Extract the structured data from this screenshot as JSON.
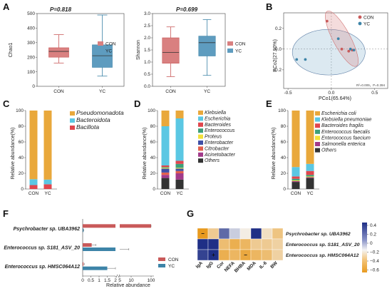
{
  "colors": {
    "con": "#c95a5a",
    "yc": "#3d84a8",
    "con_fill": "#d98080",
    "yc_fill": "#5e9cbf"
  },
  "chart_data": [
    {
      "panel": "A",
      "type": "box",
      "ylabel": "Chao1",
      "pvalue_text": "P=0.818",
      "ylim": [
        0,
        500
      ],
      "yticks": [
        0,
        100,
        200,
        300,
        400,
        500
      ],
      "categories": [
        "CON",
        "YC"
      ],
      "series": [
        {
          "name": "CON",
          "min": 160,
          "q1": 200,
          "median": 240,
          "q3": 265,
          "max": 355
        },
        {
          "name": "YC",
          "min": 70,
          "q1": 130,
          "median": 210,
          "q3": 285,
          "max": 490
        }
      ]
    },
    {
      "panel": "A2",
      "type": "box",
      "ylabel": "Shannon",
      "pvalue_text": "P=0.699",
      "ylim": [
        0,
        3.0
      ],
      "yticks": [
        0.0,
        0.5,
        1.0,
        1.5,
        2.0,
        2.5,
        3.0
      ],
      "categories": [
        "CON",
        "YC"
      ],
      "series": [
        {
          "name": "CON",
          "min": 0.4,
          "q1": 0.95,
          "median": 1.4,
          "q3": 2.0,
          "max": 2.45
        },
        {
          "name": "YC",
          "min": 0.45,
          "q1": 1.25,
          "median": 1.8,
          "q3": 2.07,
          "max": 2.75
        }
      ]
    },
    {
      "panel": "B",
      "type": "scatter",
      "xlabel": "PCo1(65.64%)",
      "ylabel": "PCo2(27.90%)",
      "xlim": [
        -0.55,
        0.65
      ],
      "ylim": [
        -0.38,
        0.35
      ],
      "xticks": [
        -0.5,
        0.0,
        0.5
      ],
      "yticks": [
        -0.2,
        0.0,
        0.2
      ],
      "annotation": "R²=0.009，P=0.394",
      "series": [
        {
          "name": "CON",
          "points": [
            [
              -0.05,
              0.27
            ],
            [
              0.12,
              0.0
            ],
            [
              0.2,
              -0.02
            ],
            [
              0.24,
              -0.01
            ]
          ]
        },
        {
          "name": "YC",
          "points": [
            [
              0.08,
              0.1
            ],
            [
              0.22,
              0.0
            ],
            [
              -0.3,
              -0.1
            ],
            [
              -0.4,
              -0.1
            ],
            [
              0.26,
              -0.01
            ]
          ]
        }
      ]
    },
    {
      "panel": "C",
      "type": "bar",
      "stacked": true,
      "ylabel": "Relative abundance(%)",
      "ylim": [
        0,
        100
      ],
      "yticks": [
        0,
        20,
        40,
        60,
        80,
        100
      ],
      "categories": [
        "CON",
        "YC"
      ],
      "series": [
        {
          "name": "Pseudomonadota",
          "color": "#e9a83b",
          "values": [
            87.5,
            88
          ]
        },
        {
          "name": "Bacteroidota",
          "color": "#5bc7e3",
          "values": [
            7.5,
            6
          ]
        },
        {
          "name": "Bacillota",
          "color": "#e0464d",
          "values": [
            5,
            6
          ]
        }
      ]
    },
    {
      "panel": "D",
      "type": "bar",
      "stacked": true,
      "ylabel": "Relative abundance(%)",
      "ylim": [
        0,
        100
      ],
      "yticks": [
        0,
        20,
        40,
        60,
        80,
        100
      ],
      "categories": [
        "CON",
        "YC"
      ],
      "series": [
        {
          "name": "Klebsiella",
          "color": "#e9a83b",
          "values": [
            20,
            10
          ]
        },
        {
          "name": "Escherichia",
          "color": "#5bc7e3",
          "values": [
            50,
            54
          ]
        },
        {
          "name": "Bacteroides",
          "color": "#e0464d",
          "values": [
            2,
            4
          ]
        },
        {
          "name": "Enterococcus",
          "color": "#3d9f7a",
          "values": [
            1,
            5
          ]
        },
        {
          "name": "Proteus",
          "color": "#f2e13a",
          "values": [
            1,
            1
          ]
        },
        {
          "name": "Enterobacter",
          "color": "#3f4fa6",
          "values": [
            5,
            3
          ]
        },
        {
          "name": "Citrobacter",
          "color": "#e2604d",
          "values": [
            3,
            3
          ]
        },
        {
          "name": "Acinetobacter",
          "color": "#a23a8a",
          "values": [
            4,
            8
          ]
        },
        {
          "name": "Others",
          "color": "#333333",
          "values": [
            14,
            12
          ]
        }
      ]
    },
    {
      "panel": "E",
      "type": "bar",
      "stacked": true,
      "ylabel": "Relative abundance(%)",
      "ylim": [
        0,
        100
      ],
      "yticks": [
        0,
        20,
        40,
        60,
        80,
        100
      ],
      "categories": [
        "CON",
        "YC"
      ],
      "series": [
        {
          "name": "Escherichia coli",
          "color": "#e9a83b",
          "values": [
            72,
            68
          ]
        },
        {
          "name": "Klebsiella pneumoniae",
          "color": "#5bc7e3",
          "values": [
            12,
            9
          ]
        },
        {
          "name": "Bacteroides fragilis",
          "color": "#e0464d",
          "values": [
            3,
            5
          ]
        },
        {
          "name": "Enterococcus faecalis",
          "color": "#3d9f7a",
          "values": [
            2,
            2
          ]
        },
        {
          "name": "Enterococcus faecium",
          "color": "#f2e13a",
          "values": [
            1,
            1
          ]
        },
        {
          "name": "Salmonella enterica",
          "color": "#a23a8a",
          "values": [
            1,
            1
          ]
        },
        {
          "name": "Others",
          "color": "#333333",
          "values": [
            9,
            14
          ]
        }
      ]
    },
    {
      "panel": "F",
      "type": "bar",
      "orientation": "horizontal",
      "xlabel": "Relative abundance",
      "xticks_left": [
        "0",
        "0.5",
        "1",
        "1.5",
        "2"
      ],
      "xticks_right": [
        "5",
        "10",
        "100"
      ],
      "categories": [
        "Psychrobacter sp. UBA3962",
        "Enterococcus sp. S181_ASV_20",
        "Enterococcus sp. HMSC064A12"
      ],
      "series": [
        {
          "name": "CON",
          "values": [
            100,
            0.55,
            0.05
          ],
          "errors": [
            40,
            0.25,
            0.05
          ]
        },
        {
          "name": "YC",
          "values": [
            0.05,
            5,
            1.5
          ],
          "errors": [
            0.02,
            4,
            0.5
          ]
        }
      ]
    },
    {
      "panel": "G",
      "type": "heatmap",
      "columns": [
        "IgA",
        "IgG",
        "Cor",
        "NEFA",
        "BHBA",
        "MDA",
        "IL-6",
        "BW"
      ],
      "rows": [
        "Psychrobacter sp. UBA3962",
        "Enterococcus sp. S181_ASV_20",
        "Enterococcus sp. HMSC064A12"
      ],
      "values": [
        [
          -0.65,
          -0.3,
          0.35,
          0.1,
          -0.05,
          0.5,
          -0.15,
          -0.35
        ],
        [
          0.5,
          0.55,
          -0.4,
          -0.5,
          -0.45,
          -0.3,
          -0.3,
          -0.25
        ],
        [
          0.45,
          0.6,
          -0.5,
          -0.45,
          -0.55,
          -0.45,
          -0.4,
          -0.25
        ]
      ],
      "marks": [
        {
          "row": 0,
          "col": 0,
          "text": "−"
        },
        {
          "row": 2,
          "col": 1,
          "text": "+"
        },
        {
          "row": 2,
          "col": 4,
          "text": "−"
        }
      ],
      "colorbar_ticks": [
        "0.4",
        "0.2",
        "0",
        "−0.2",
        "−0.4",
        "−0.6"
      ],
      "colorbar_range": [
        -0.65,
        0.5
      ]
    }
  ],
  "panel_labels": [
    "A",
    "B",
    "C",
    "D",
    "E",
    "F",
    "G"
  ]
}
